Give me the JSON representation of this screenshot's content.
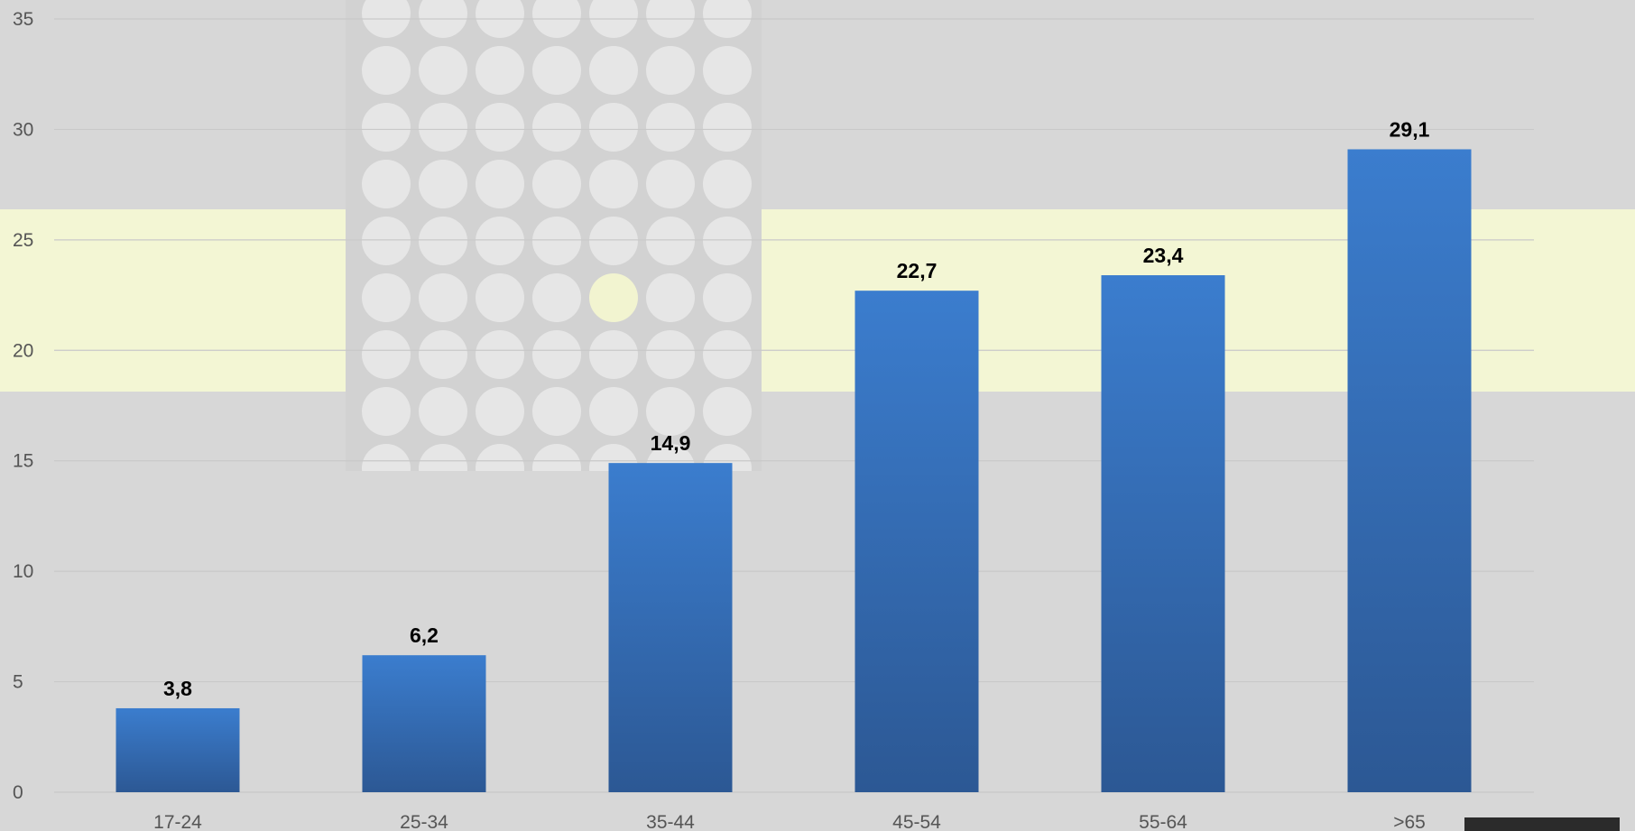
{
  "chart_data": {
    "type": "bar",
    "title": "",
    "xlabel": "",
    "ylabel": "",
    "categories": [
      "17-24",
      "25-34",
      "35-44",
      "45-54",
      "55-64",
      ">65"
    ],
    "values": [
      3.8,
      6.2,
      14.9,
      22.7,
      23.4,
      29.1
    ],
    "data_labels": [
      "3,8",
      "6,2",
      "14,9",
      "22,7",
      "23,4",
      "29,1"
    ],
    "ylim": [
      0,
      35
    ],
    "yticks": [
      0,
      5,
      10,
      15,
      20,
      25,
      30,
      35
    ],
    "ytick_labels": [
      "0",
      "5",
      "10",
      "15",
      "20",
      "25",
      "30",
      "35"
    ],
    "grid": true,
    "legend": "none",
    "colors": {
      "bar_top": "#3b7dce",
      "bar_bottom": "#2c5894",
      "gridline": "#c9c9c9",
      "tick_text": "#555555",
      "data_label_text": "#000000"
    }
  }
}
